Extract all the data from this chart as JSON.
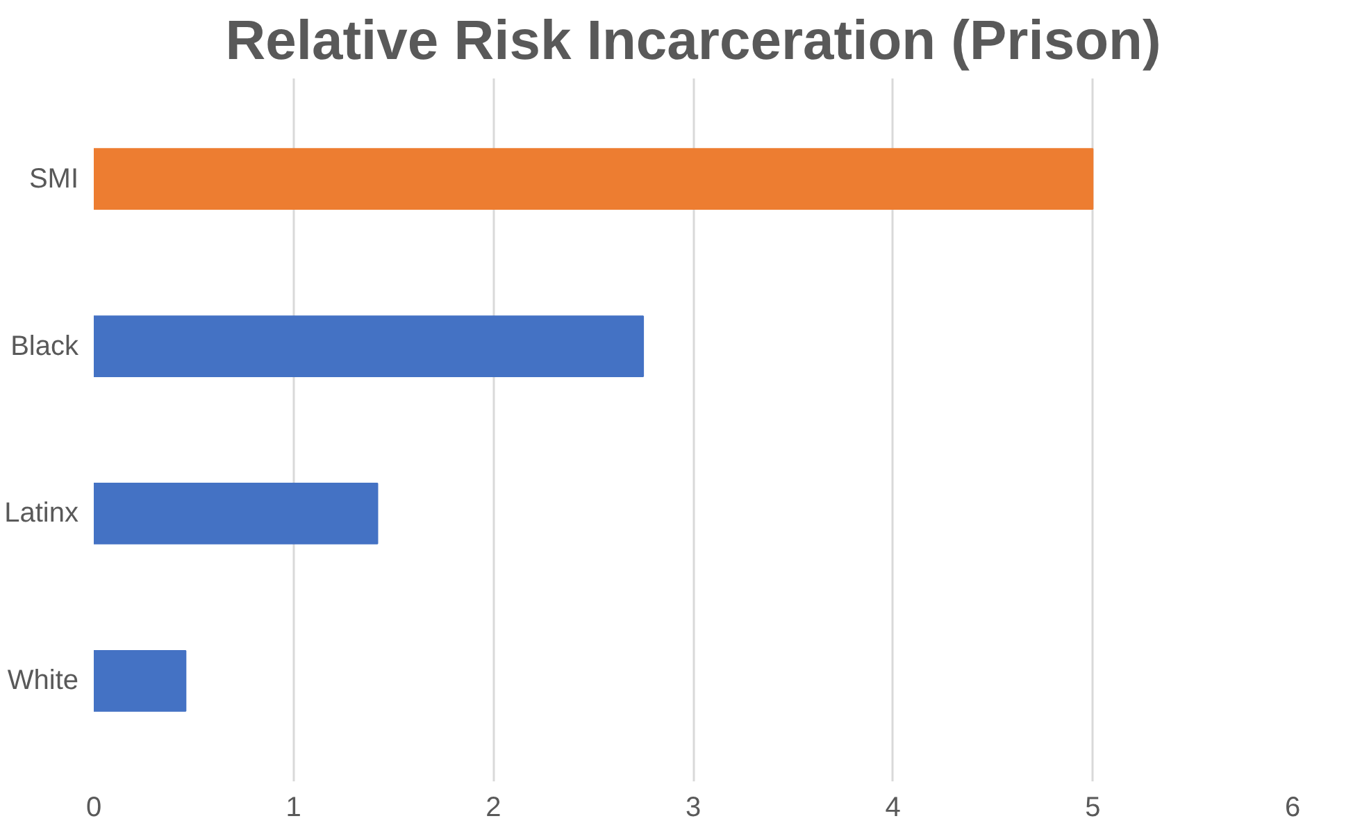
{
  "chart_data": {
    "type": "bar",
    "orientation": "horizontal",
    "title": "Relative Risk Incarceration (Prison)",
    "categories": [
      "SMI",
      "Black",
      "Latinx",
      "White"
    ],
    "values": [
      5.0,
      2.75,
      1.42,
      0.46
    ],
    "colors": [
      "#ed7d31",
      "#4472c4",
      "#4472c4",
      "#4472c4"
    ],
    "xlim": [
      0,
      6
    ],
    "xticks": [
      0,
      1,
      2,
      3,
      4,
      5,
      6
    ],
    "grid": "x"
  }
}
